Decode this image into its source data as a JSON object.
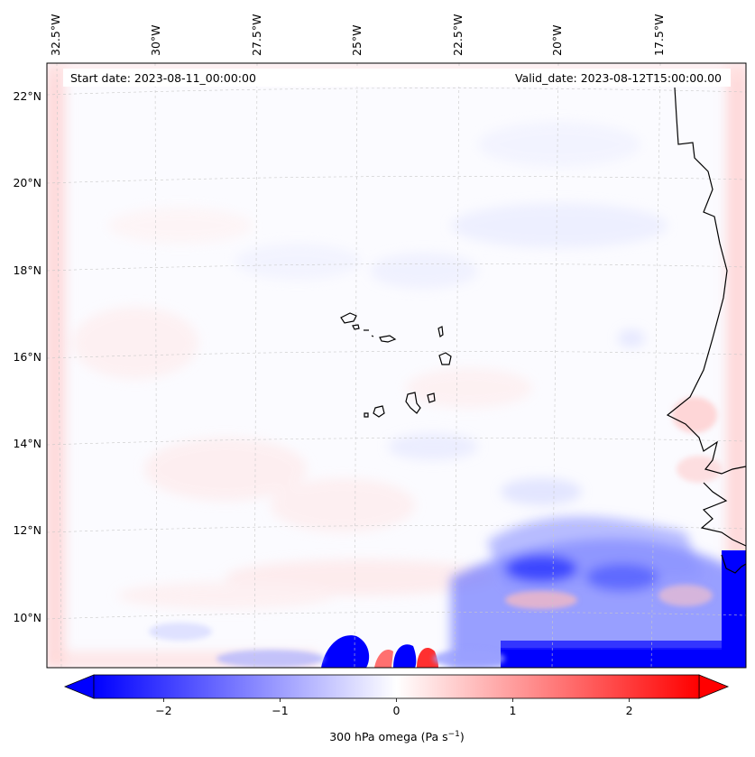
{
  "map": {
    "start_date": "Start date: 2023-08-11_00:00:00",
    "valid_date": "Valid_date: 2023-08-12T15:00:00.00",
    "lon_labels": [
      "32.5°W",
      "30°W",
      "27.5°W",
      "25°W",
      "22.5°W",
      "20°W",
      "17.5°W"
    ],
    "lat_labels": [
      "22°N",
      "20°N",
      "18°N",
      "16°N",
      "14°N",
      "12°N",
      "10°N"
    ],
    "colors": {
      "negative": "#0000ff",
      "positive": "#ff0000",
      "neutral": "#ffffff",
      "coastline": "#000000",
      "grid": "#b0b0b0"
    }
  },
  "colorbar": {
    "tick_labels": [
      "−2",
      "−1",
      "0",
      "1",
      "2"
    ],
    "ticks": [
      -2,
      -1,
      0,
      1,
      2
    ],
    "range": [
      -2.6,
      2.6
    ],
    "label": "300 hPa omega (Pa s",
    "label_sup": "−1",
    "label_end": ")"
  }
}
